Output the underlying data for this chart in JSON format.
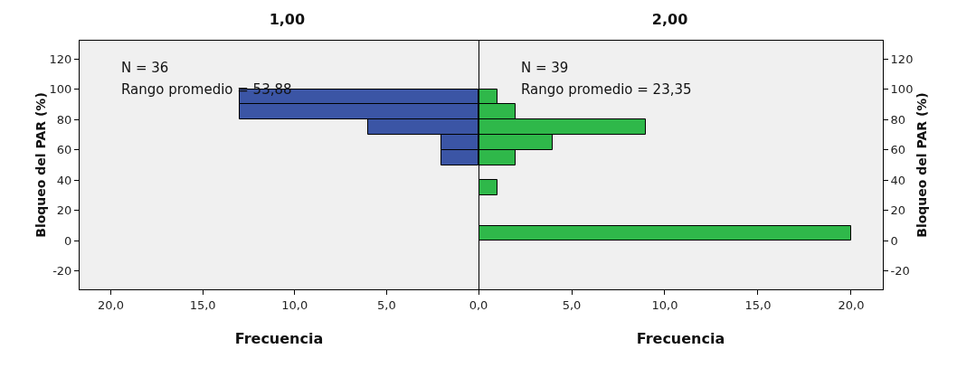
{
  "chart_data": [
    {
      "type": "histogram",
      "orientation": "horizontal",
      "title": "1,00",
      "xlabel": "Frecuencia",
      "ylabel": "Bloqueo del PAR (%)",
      "color": "#3b55a5",
      "bins": [
        50,
        60,
        70,
        80,
        90,
        100
      ],
      "values": [
        2,
        2,
        6,
        13,
        13
      ],
      "xlim": [
        21.7,
        0
      ],
      "xticks": [
        {
          "value": 20,
          "label": "20,0"
        },
        {
          "value": 15,
          "label": "15,0"
        },
        {
          "value": 10,
          "label": "10,0"
        },
        {
          "value": 5,
          "label": "5,0"
        },
        {
          "value": 0,
          "label": "0,0"
        }
      ],
      "ylim": [
        -32,
        132
      ],
      "yticks": [
        -20,
        0,
        20,
        40,
        60,
        80,
        100,
        120
      ],
      "annotations": [
        "N = 36",
        "Rango promedio = 53,88"
      ]
    },
    {
      "type": "histogram",
      "orientation": "horizontal",
      "title": "2,00",
      "xlabel": "Frecuencia",
      "ylabel": "Bloqueo del PAR (%)",
      "color": "#2fb84a",
      "bins": [
        0,
        10,
        20,
        30,
        40,
        50,
        60,
        70,
        80,
        90,
        100
      ],
      "values": [
        20,
        0,
        0,
        1,
        0,
        2,
        4,
        9,
        2,
        1
      ],
      "xlim": [
        0,
        21.7
      ],
      "xticks": [
        {
          "value": 0,
          "label": null
        },
        {
          "value": 5,
          "label": "5,0"
        },
        {
          "value": 10,
          "label": "10,0"
        },
        {
          "value": 15,
          "label": "15,0"
        },
        {
          "value": 20,
          "label": "20,0"
        }
      ],
      "ylim": [
        -32,
        132
      ],
      "yticks": [
        -20,
        0,
        20,
        40,
        60,
        80,
        100,
        120
      ],
      "annotations": [
        "N = 39",
        "Rango promedio = 23,35"
      ]
    }
  ]
}
